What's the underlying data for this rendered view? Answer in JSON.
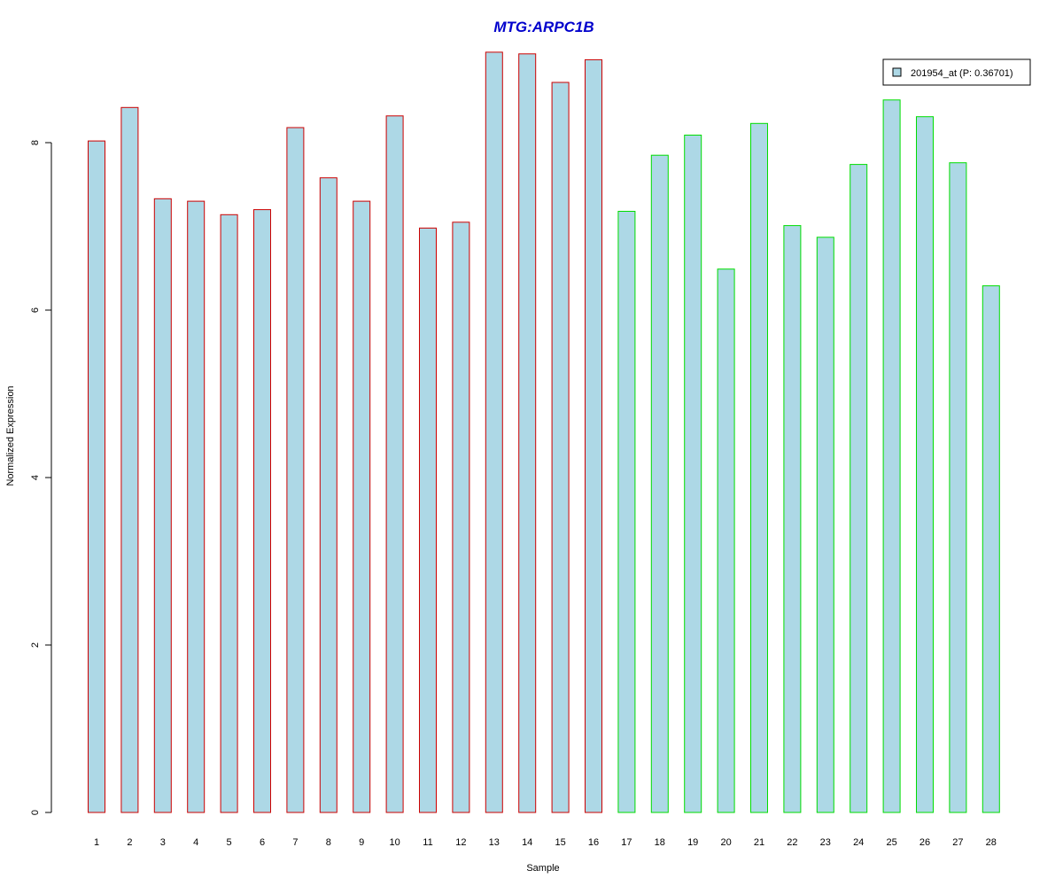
{
  "chart_data": {
    "type": "bar",
    "title": "MTG:ARPC1B",
    "xlabel": "Sample",
    "ylabel": "Normalized Expression",
    "ylim": [
      0,
      9.1
    ],
    "yticks": [
      0,
      2,
      4,
      6,
      8
    ],
    "grid": false,
    "legend_position": "top-right",
    "categories": [
      "1",
      "2",
      "3",
      "4",
      "5",
      "6",
      "7",
      "8",
      "9",
      "10",
      "11",
      "12",
      "13",
      "14",
      "15",
      "16",
      "17",
      "18",
      "19",
      "20",
      "21",
      "22",
      "23",
      "24",
      "25",
      "26",
      "27",
      "28"
    ],
    "series": [
      {
        "name": "201954_at (P: 0.36701)",
        "values": [
          8.02,
          8.42,
          7.33,
          7.3,
          7.14,
          7.2,
          8.18,
          7.58,
          7.3,
          8.32,
          6.98,
          7.05,
          9.08,
          9.06,
          8.72,
          8.99,
          7.18,
          7.85,
          8.09,
          6.49,
          8.23,
          7.01,
          6.87,
          7.74,
          8.51,
          8.31,
          7.76,
          6.29
        ],
        "fill": "#ADD8E6"
      }
    ],
    "bar_borders": [
      "#CC0000",
      "#CC0000",
      "#CC0000",
      "#CC0000",
      "#CC0000",
      "#CC0000",
      "#CC0000",
      "#CC0000",
      "#CC0000",
      "#CC0000",
      "#CC0000",
      "#CC0000",
      "#CC0000",
      "#CC0000",
      "#CC0000",
      "#CC0000",
      "#00DD00",
      "#00DD00",
      "#00DD00",
      "#00DD00",
      "#00DD00",
      "#00DD00",
      "#00DD00",
      "#00DD00",
      "#00DD00",
      "#00DD00",
      "#00DD00",
      "#00DD00"
    ],
    "title_color": "#0000CC"
  }
}
